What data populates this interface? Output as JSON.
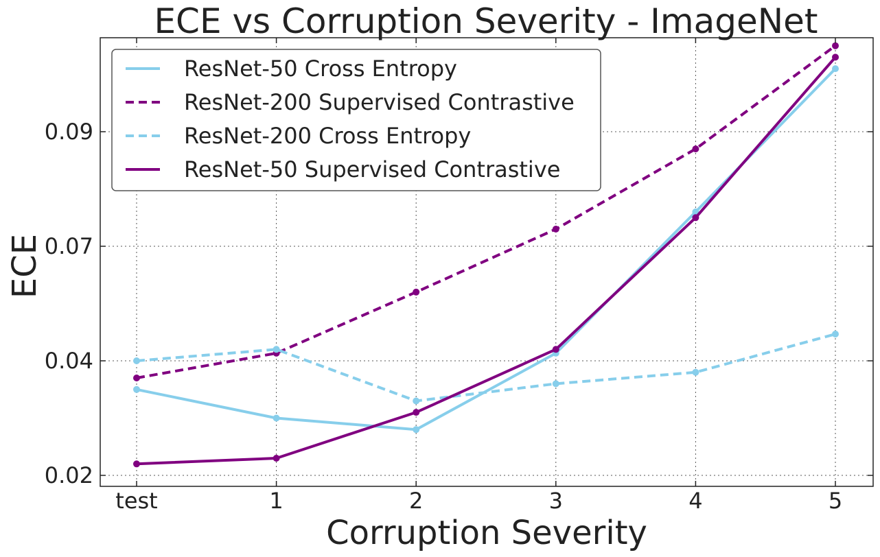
{
  "chart_data": {
    "type": "line",
    "title": "ECE vs Corruption Severity - ImageNet",
    "xlabel": "Corruption Severity",
    "ylabel": "ECE",
    "categories": [
      "test",
      "1",
      "2",
      "3",
      "4",
      "5"
    ],
    "yticks": [
      0.02,
      0.04,
      0.07,
      0.09
    ],
    "ytick_labels": [
      "0.02",
      "0.04",
      "0.07",
      "0.09"
    ],
    "grid": true,
    "legend_position": "top-left",
    "series": [
      {
        "name": "ResNet-50 Cross Entropy",
        "color": "#87ceeb",
        "dash": "solid",
        "values": [
          0.035,
          0.03,
          0.028,
          0.042,
          0.076,
          0.101
        ]
      },
      {
        "name": "ResNet-200 Supervised Contrastive",
        "color": "#800080",
        "dash": "dashed",
        "values": [
          0.037,
          0.042,
          0.058,
          0.073,
          0.087,
          0.105
        ]
      },
      {
        "name": "ResNet-200 Cross Entropy",
        "color": "#87ceeb",
        "dash": "dashed",
        "values": [
          0.04,
          0.043,
          0.033,
          0.036,
          0.038,
          0.047
        ]
      },
      {
        "name": "ResNet-50 Supervised Contrastive",
        "color": "#800080",
        "dash": "solid",
        "values": [
          0.022,
          0.023,
          0.031,
          0.043,
          0.075,
          0.103
        ]
      }
    ]
  }
}
